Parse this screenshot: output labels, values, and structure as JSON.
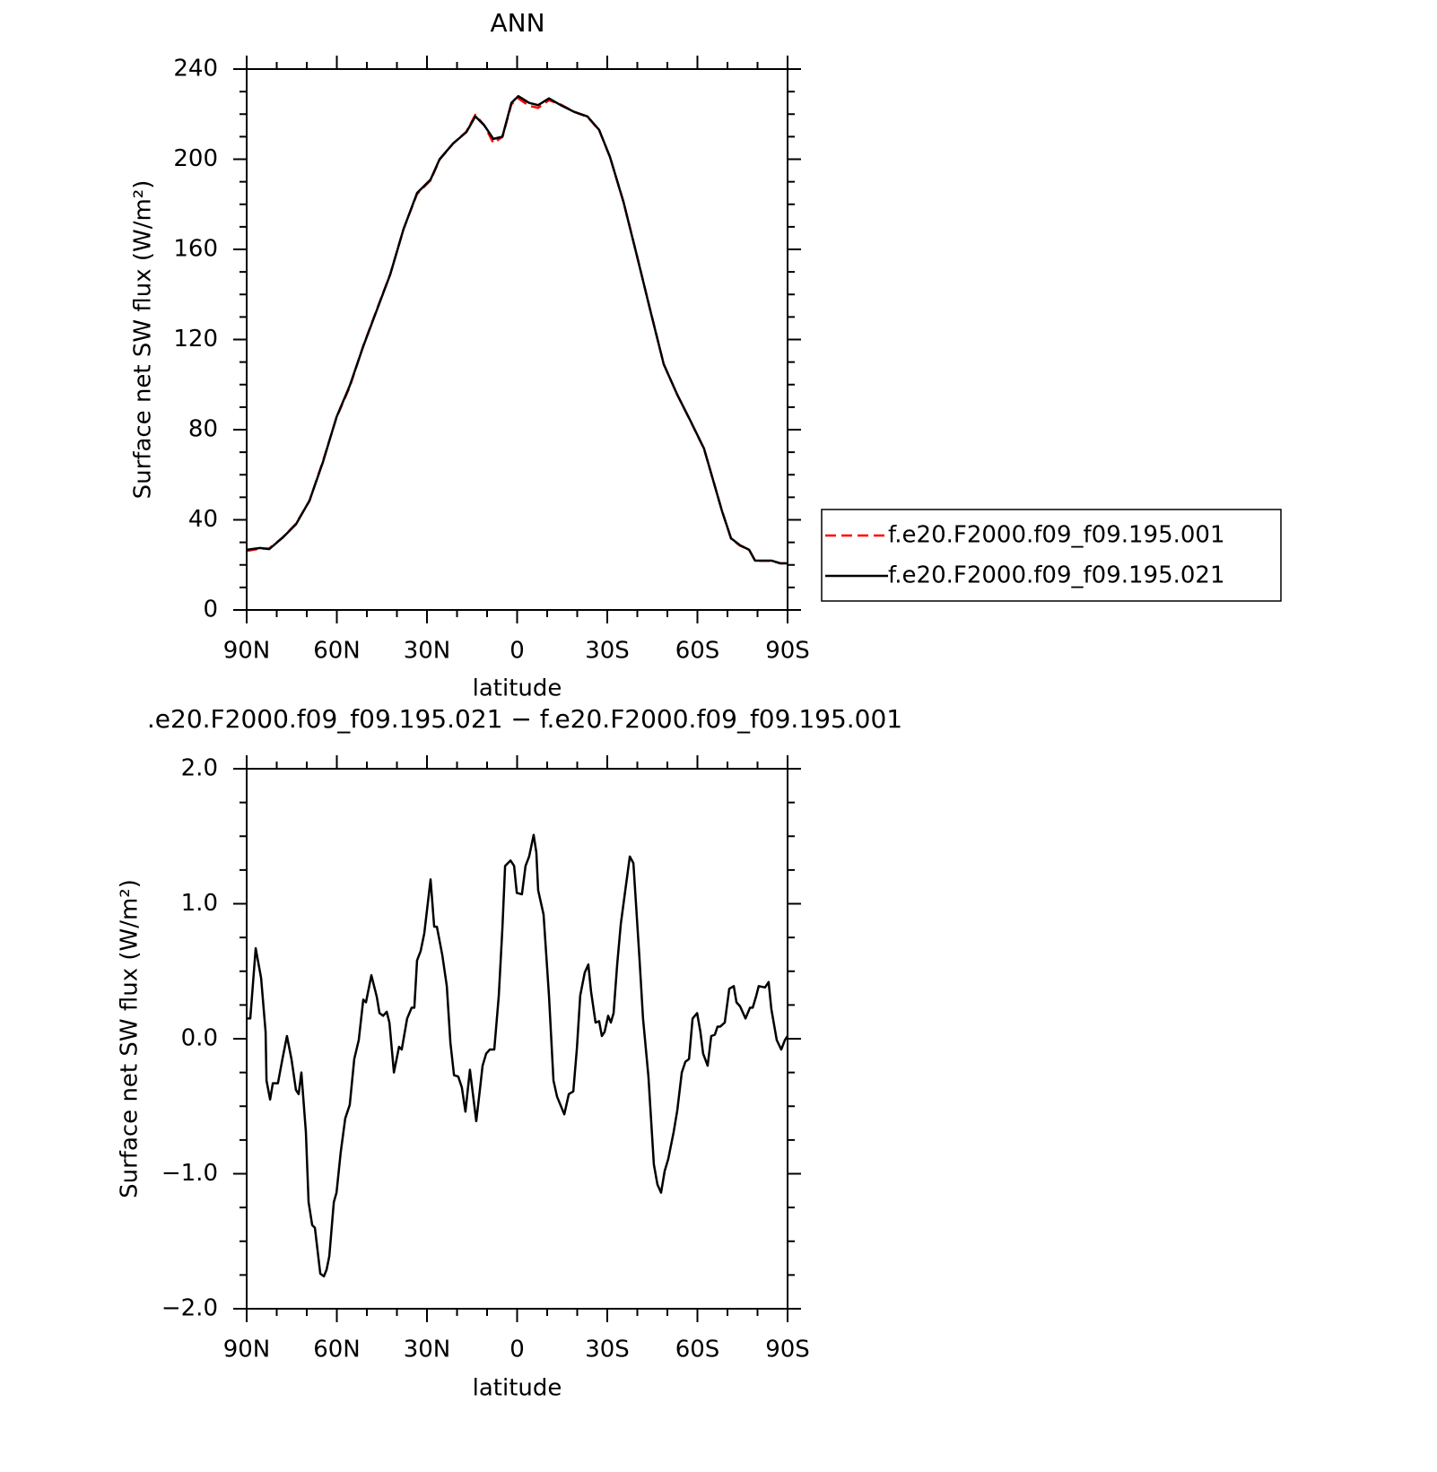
{
  "chart_data": [
    {
      "type": "line",
      "title": "ANN",
      "xlabel": "latitude",
      "ylabel": "Surface net SW flux (W/m²)",
      "x": [
        90,
        85.5,
        82.5,
        78.1,
        73.6,
        69.1,
        64.6,
        60.1,
        55.7,
        51.2,
        46.7,
        42.2,
        37.8,
        33.3,
        28.8,
        25.8,
        21.3,
        16.9,
        13.9,
        10.9,
        7.9,
        4.9,
        1.9,
        -0.4,
        -4.0,
        -7.0,
        -10.6,
        -14.5,
        -19.0,
        -23.4,
        -27.3,
        -30.9,
        -35.4,
        -39.9,
        -44.3,
        -48.8,
        -53.3,
        -57.8,
        -62.2,
        -65.2,
        -68.2,
        -71.2,
        -74.2,
        -77.2,
        -79.2,
        -84.6,
        -87.6,
        -90
      ],
      "series": [
        {
          "name": "f.e20.F2000.f09_f09.195.001",
          "color": "#ff0000",
          "dash": true,
          "values": [
            26.2,
            27.2,
            27.3,
            32.1,
            38.3,
            48.4,
            66.1,
            85.4,
            99.0,
            117.2,
            133.3,
            149.1,
            169.0,
            184.6,
            190.6,
            199.8,
            207.0,
            212.2,
            219.7,
            215.0,
            207.2,
            209.9,
            224.4,
            227.0,
            223.7,
            222.8,
            226.2,
            224.3,
            221.0,
            218.8,
            212.9,
            201.0,
            181.1,
            157.1,
            133.1,
            109.0,
            95.5,
            83.5,
            71.5,
            57.7,
            43.9,
            31.6,
            28.5,
            26.8,
            21.8,
            21.8,
            20.7,
            20.7
          ]
        },
        {
          "name": "f.e20.F2000.f09_f09.195.021",
          "color": "#000000",
          "dash": false,
          "values": [
            26.7,
            27.5,
            27.0,
            32.0,
            38.0,
            48.5,
            65.7,
            85.6,
            99.5,
            117.0,
            133.0,
            149.0,
            169.0,
            185.0,
            191.0,
            200.0,
            207.0,
            212.0,
            219.0,
            215.0,
            209.0,
            210.0,
            225.0,
            228.0,
            225.0,
            224.0,
            227.0,
            224.0,
            221.0,
            219.0,
            213.0,
            201.0,
            181.0,
            157.0,
            133.0,
            109.0,
            95.5,
            83.6,
            71.6,
            57.7,
            43.8,
            31.8,
            28.7,
            26.7,
            21.9,
            21.9,
            20.7,
            20.7
          ]
        }
      ],
      "xlim": [
        90,
        -90
      ],
      "xticks": [
        {
          "value": 90,
          "label": "90N"
        },
        {
          "value": 60,
          "label": "60N"
        },
        {
          "value": 30,
          "label": "30N"
        },
        0,
        {
          "value": -30,
          "label": "30S"
        },
        {
          "value": -60,
          "label": "60S"
        },
        {
          "value": -90,
          "label": "90S"
        }
      ],
      "ylim": [
        0,
        240
      ],
      "yticks": [
        0,
        40,
        80,
        120,
        160,
        200,
        240
      ],
      "legend": "right"
    },
    {
      "type": "line",
      "title": ".e20.F2000.f09_f09.195.021 − f.e20.F2000.f09_f09.195.001",
      "xlabel": "latitude",
      "ylabel": "Surface net SW flux (W/m²)",
      "x": [
        90,
        88.8,
        87.0,
        85.2,
        83.7,
        83.4,
        82.2,
        81.3,
        79.6,
        78.1,
        76.6,
        75.1,
        73.6,
        72.7,
        71.8,
        70.3,
        69.4,
        68.2,
        67.3,
        65.5,
        64.3,
        63.4,
        62.5,
        61.0,
        60.1,
        58.7,
        57.2,
        55.7,
        54.2,
        52.7,
        51.2,
        50.3,
        48.5,
        46.7,
        45.8,
        44.6,
        43.4,
        42.5,
        41.0,
        39.3,
        38.4,
        36.6,
        35.1,
        34.2,
        33.3,
        32.1,
        30.9,
        28.8,
        27.6,
        26.7,
        24.9,
        23.4,
        22.2,
        21.0,
        19.6,
        18.4,
        17.2,
        15.7,
        13.6,
        12.4,
        11.5,
        10.3,
        9.1,
        7.6,
        6.1,
        4.9,
        4.0,
        2.2,
        1.0,
        0.1,
        -1.6,
        -2.8,
        -4.0,
        -5.5,
        -6.4,
        -7.0,
        -8.8,
        -10.6,
        -12.1,
        -13.3,
        -15.7,
        -17.2,
        -18.7,
        -19.9,
        -21.0,
        -22.5,
        -23.7,
        -24.6,
        -26.1,
        -27.3,
        -28.2,
        -29.1,
        -30.3,
        -31.2,
        -32.1,
        -33.3,
        -34.5,
        -36.0,
        -37.5,
        -38.7,
        -40.7,
        -41.9,
        -43.7,
        -45.5,
        -46.7,
        -47.9,
        -49.1,
        -50.3,
        -52.1,
        -53.3,
        -54.8,
        -56.0,
        -57.2,
        -58.4,
        -59.9,
        -61.0,
        -61.9,
        -63.4,
        -64.6,
        -65.8,
        -66.7,
        -67.6,
        -69.1,
        -70.6,
        -72.1,
        -73.0,
        -74.2,
        -76.0,
        -77.5,
        -78.4,
        -79.6,
        -80.4,
        -82.5,
        -83.7,
        -84.6,
        -86.4,
        -87.9,
        -89.1,
        -90
      ],
      "values": [
        0.15,
        0.15,
        0.67,
        0.45,
        0.05,
        -0.31,
        -0.45,
        -0.33,
        -0.33,
        -0.15,
        0.02,
        -0.15,
        -0.38,
        -0.41,
        -0.25,
        -0.69,
        -1.21,
        -1.38,
        -1.4,
        -1.74,
        -1.76,
        -1.71,
        -1.61,
        -1.21,
        -1.14,
        -0.84,
        -0.59,
        -0.49,
        -0.15,
        -0.01,
        0.29,
        0.27,
        0.47,
        0.31,
        0.19,
        0.17,
        0.2,
        0.12,
        -0.25,
        -0.06,
        -0.08,
        0.15,
        0.23,
        0.23,
        0.58,
        0.65,
        0.78,
        1.18,
        0.83,
        0.83,
        0.62,
        0.39,
        -0.03,
        -0.27,
        -0.28,
        -0.36,
        -0.54,
        -0.23,
        -0.61,
        -0.38,
        -0.2,
        -0.11,
        -0.08,
        -0.08,
        0.32,
        0.82,
        1.28,
        1.32,
        1.28,
        1.08,
        1.07,
        1.28,
        1.35,
        1.51,
        1.38,
        1.1,
        0.92,
        0.32,
        -0.31,
        -0.43,
        -0.56,
        -0.41,
        -0.39,
        -0.07,
        0.32,
        0.49,
        0.55,
        0.35,
        0.12,
        0.13,
        0.02,
        0.05,
        0.17,
        0.12,
        0.19,
        0.55,
        0.85,
        1.1,
        1.35,
        1.3,
        0.6,
        0.15,
        -0.28,
        -0.93,
        -1.08,
        -1.14,
        -0.98,
        -0.89,
        -0.69,
        -0.53,
        -0.25,
        -0.17,
        -0.15,
        0.15,
        0.19,
        0.05,
        -0.11,
        -0.2,
        0.02,
        0.03,
        0.09,
        0.09,
        0.12,
        0.37,
        0.39,
        0.27,
        0.24,
        0.15,
        0.23,
        0.23,
        0.32,
        0.39,
        0.38,
        0.42,
        0.22,
        -0.01,
        -0.08,
        -0.01,
        0.02
      ],
      "color": "#000000",
      "xlim": [
        90,
        -90
      ],
      "xticks": [
        {
          "value": 90,
          "label": "90N"
        },
        {
          "value": 60,
          "label": "60N"
        },
        {
          "value": 30,
          "label": "30N"
        },
        0,
        {
          "value": -30,
          "label": "30S"
        },
        {
          "value": -60,
          "label": "60S"
        },
        {
          "value": -90,
          "label": "90S"
        }
      ],
      "ylim": [
        -2,
        2
      ],
      "yticks": [
        {
          "value": -2,
          "label": "−2.0"
        },
        {
          "value": -1,
          "label": "−1.0"
        },
        {
          "value": 0,
          "label": "0.0"
        },
        {
          "value": 1,
          "label": "1.0"
        },
        {
          "value": 2,
          "label": "2.0"
        }
      ]
    }
  ]
}
